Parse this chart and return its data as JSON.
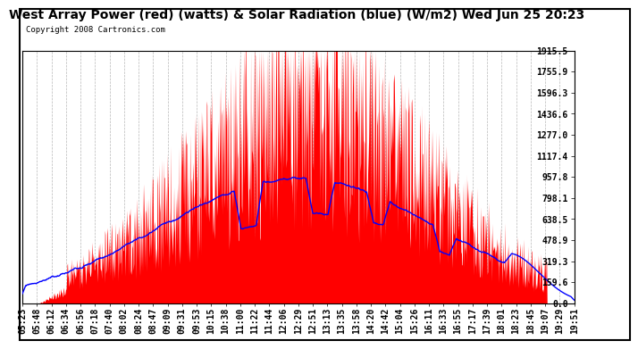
{
  "title": "West Array Power (red) (watts) & Solar Radiation (blue) (W/m2) Wed Jun 25 20:23",
  "copyright": "Copyright 2008 Cartronics.com",
  "y_ticks": [
    0.0,
    159.6,
    319.3,
    478.9,
    638.5,
    798.1,
    957.8,
    1117.4,
    1277.0,
    1436.6,
    1596.3,
    1755.9,
    1915.5
  ],
  "x_labels": [
    "05:23",
    "05:48",
    "06:12",
    "06:34",
    "06:56",
    "07:18",
    "07:40",
    "08:02",
    "08:24",
    "08:47",
    "09:09",
    "09:31",
    "09:53",
    "10:15",
    "10:38",
    "11:00",
    "11:22",
    "11:44",
    "12:06",
    "12:29",
    "12:51",
    "13:13",
    "13:35",
    "13:58",
    "14:20",
    "14:42",
    "15:04",
    "15:26",
    "16:11",
    "16:33",
    "16:55",
    "17:17",
    "17:39",
    "18:01",
    "18:23",
    "18:45",
    "19:07",
    "19:29",
    "19:51"
  ],
  "background_color": "#ffffff",
  "red_color": "#ff0000",
  "blue_color": "#0000ff",
  "grid_color": "#b0b0b0",
  "title_fontsize": 10,
  "copyright_fontsize": 6.5,
  "tick_fontsize": 7,
  "y_max": 1915.5,
  "y_min": 0.0
}
